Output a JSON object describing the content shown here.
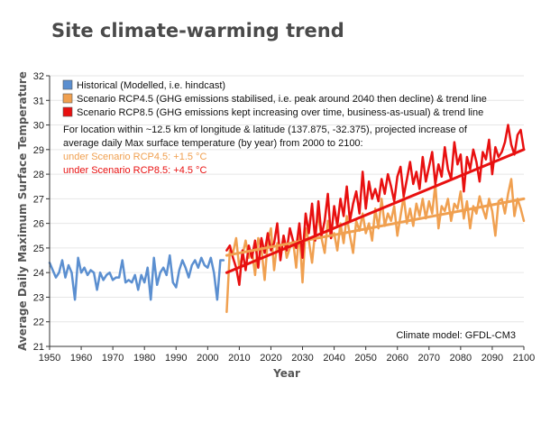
{
  "page_title": "Site climate-warming trend",
  "chart_data": {
    "type": "line",
    "xlabel": "Year",
    "ylabel": "Average Daily Maximum Surface Temperature",
    "xlim": [
      1950,
      2100
    ],
    "ylim": [
      21,
      32
    ],
    "x_ticks": [
      "1950",
      "1960",
      "1970",
      "1980",
      "1990",
      "2000",
      "2010",
      "2020",
      "2030",
      "2040",
      "2050",
      "2060",
      "2070",
      "2080",
      "2090",
      "2100"
    ],
    "y_ticks": [
      "21",
      "22",
      "23",
      "24",
      "25",
      "26",
      "27",
      "28",
      "29",
      "30",
      "31",
      "32"
    ],
    "grid": "horizontal",
    "legend_position": "top-left",
    "legend": [
      {
        "label": "Historical (Modelled, i.e. hindcast)",
        "color": "#5b8fd0"
      },
      {
        "label": "Scenario RCP4.5 (GHG emissions stabilised, i.e. peak around 2040 then decline) & trend line",
        "color": "#f0a050"
      },
      {
        "label": "Scenario RCP8.5 (GHG emissions kept increasing over time, business-as-usual) & trend line",
        "color": "#e81010"
      }
    ],
    "note_lines": [
      "For location within ~12.5 km of longitude & latitude (137.875, -32.375), projected increase of",
      "average daily Max surface temperature (by year) from 2000 to 2100:"
    ],
    "scenario_notes": [
      {
        "text": "under Scenario RCP4.5: +1.5 °C",
        "color": "#f0a050"
      },
      {
        "text": "under Scenario RCP8.5: +4.5 °C",
        "color": "#e81010"
      }
    ],
    "model_label": "Climate model: GFDL-CM3",
    "series": [
      {
        "name": "Historical (Modelled, i.e. hindcast)",
        "color": "#5b8fd0",
        "x": [
          1950,
          1951,
          1952,
          1953,
          1954,
          1955,
          1956,
          1957,
          1958,
          1959,
          1960,
          1961,
          1962,
          1963,
          1964,
          1965,
          1966,
          1967,
          1968,
          1969,
          1970,
          1971,
          1972,
          1973,
          1974,
          1975,
          1976,
          1977,
          1978,
          1979,
          1980,
          1981,
          1982,
          1983,
          1984,
          1985,
          1986,
          1987,
          1988,
          1989,
          1990,
          1991,
          1992,
          1993,
          1994,
          1995,
          1996,
          1997,
          1998,
          1999,
          2000,
          2001,
          2002,
          2003,
          2004,
          2005
        ],
        "values": [
          24.4,
          24.1,
          23.8,
          24.0,
          24.5,
          23.8,
          24.3,
          24.0,
          22.9,
          24.6,
          24.0,
          24.2,
          23.9,
          24.1,
          24.0,
          23.3,
          24.0,
          23.7,
          23.9,
          24.0,
          23.7,
          23.8,
          23.8,
          24.5,
          23.6,
          23.7,
          23.6,
          23.9,
          23.3,
          23.9,
          23.6,
          24.2,
          22.9,
          24.6,
          23.5,
          24.0,
          24.2,
          23.9,
          24.7,
          23.6,
          23.4,
          24.1,
          24.5,
          24.2,
          23.8,
          24.3,
          24.5,
          24.2,
          24.6,
          24.3,
          24.2,
          24.6,
          24.0,
          22.9,
          24.5,
          24.5
        ]
      },
      {
        "name": "Scenario RCP4.5",
        "color": "#f0a050",
        "x": [
          2006,
          2007,
          2008,
          2009,
          2010,
          2011,
          2012,
          2013,
          2014,
          2015,
          2016,
          2017,
          2018,
          2019,
          2020,
          2021,
          2022,
          2023,
          2024,
          2025,
          2026,
          2027,
          2028,
          2029,
          2030,
          2031,
          2032,
          2033,
          2034,
          2035,
          2036,
          2037,
          2038,
          2039,
          2040,
          2041,
          2042,
          2043,
          2044,
          2045,
          2046,
          2047,
          2048,
          2049,
          2050,
          2051,
          2052,
          2053,
          2054,
          2055,
          2056,
          2057,
          2058,
          2059,
          2060,
          2061,
          2062,
          2063,
          2064,
          2065,
          2066,
          2067,
          2068,
          2069,
          2070,
          2071,
          2072,
          2073,
          2074,
          2075,
          2076,
          2077,
          2078,
          2079,
          2080,
          2081,
          2082,
          2083,
          2084,
          2085,
          2086,
          2087,
          2088,
          2089,
          2090,
          2091,
          2092,
          2093,
          2094,
          2095,
          2096,
          2097,
          2098,
          2099,
          2100
        ],
        "values": [
          22.4,
          24.9,
          24.8,
          25.4,
          24.2,
          24.7,
          25.3,
          24.6,
          24.9,
          23.9,
          25.4,
          25.0,
          23.7,
          25.3,
          25.8,
          24.1,
          25.2,
          24.7,
          25.5,
          24.6,
          25.0,
          25.3,
          24.2,
          25.7,
          23.6,
          25.8,
          25.3,
          24.4,
          25.7,
          26.3,
          25.4,
          24.8,
          26.1,
          25.4,
          25.6,
          24.9,
          26.0,
          25.2,
          26.3,
          25.5,
          24.8,
          26.1,
          25.7,
          26.4,
          25.6,
          26.0,
          25.3,
          26.6,
          25.8,
          27.0,
          25.9,
          26.4,
          26.1,
          26.7,
          25.5,
          26.3,
          27.1,
          26.0,
          26.6,
          25.9,
          26.8,
          26.3,
          27.0,
          26.2,
          26.9,
          26.4,
          27.6,
          25.8,
          26.7,
          26.5,
          27.0,
          26.1,
          26.8,
          26.6,
          27.3,
          26.2,
          26.9,
          25.8,
          26.7,
          26.4,
          27.1,
          26.6,
          26.2,
          27.0,
          26.5,
          25.5,
          26.9,
          27.0,
          26.4,
          27.2,
          27.8,
          26.3,
          27.0,
          26.6,
          26.1
        ]
      },
      {
        "name": "Scenario RCP8.5",
        "color": "#e81010",
        "x": [
          2006,
          2007,
          2008,
          2009,
          2010,
          2011,
          2012,
          2013,
          2014,
          2015,
          2016,
          2017,
          2018,
          2019,
          2020,
          2021,
          2022,
          2023,
          2024,
          2025,
          2026,
          2027,
          2028,
          2029,
          2030,
          2031,
          2032,
          2033,
          2034,
          2035,
          2036,
          2037,
          2038,
          2039,
          2040,
          2041,
          2042,
          2043,
          2044,
          2045,
          2046,
          2047,
          2048,
          2049,
          2050,
          2051,
          2052,
          2053,
          2054,
          2055,
          2056,
          2057,
          2058,
          2059,
          2060,
          2061,
          2062,
          2063,
          2064,
          2065,
          2066,
          2067,
          2068,
          2069,
          2070,
          2071,
          2072,
          2073,
          2074,
          2075,
          2076,
          2077,
          2078,
          2079,
          2080,
          2081,
          2082,
          2083,
          2084,
          2085,
          2086,
          2087,
          2088,
          2089,
          2090,
          2091,
          2092,
          2093,
          2094,
          2095,
          2096,
          2097,
          2098,
          2099,
          2100
        ],
        "values": [
          24.9,
          25.1,
          24.6,
          24.2,
          23.5,
          24.9,
          24.1,
          25.1,
          24.6,
          25.3,
          24.2,
          25.4,
          24.8,
          25.6,
          24.9,
          25.2,
          26.0,
          24.5,
          25.5,
          24.9,
          25.8,
          25.3,
          25.0,
          26.0,
          24.6,
          26.4,
          25.6,
          26.8,
          25.3,
          26.9,
          25.5,
          26.1,
          27.2,
          25.4,
          26.7,
          25.9,
          27.0,
          26.3,
          27.5,
          26.1,
          26.8,
          27.3,
          26.4,
          28.1,
          26.6,
          27.7,
          27.0,
          27.4,
          26.9,
          27.8,
          27.2,
          28.0,
          27.5,
          26.9,
          27.9,
          28.3,
          27.1,
          27.8,
          28.5,
          27.6,
          28.1,
          27.4,
          28.7,
          27.7,
          28.3,
          28.9,
          27.6,
          28.4,
          27.9,
          29.1,
          28.2,
          27.8,
          29.3,
          28.4,
          28.8,
          27.3,
          28.7,
          28.2,
          29.0,
          28.5,
          27.7,
          28.9,
          28.6,
          29.4,
          28.0,
          29.1,
          28.7,
          28.9,
          29.3,
          30.0,
          29.2,
          28.8,
          29.6,
          29.8,
          29.0
        ]
      },
      {
        "name": "RCP4.5 trend line",
        "color": "#f0a050",
        "trend": true,
        "x": [
          2006,
          2100
        ],
        "values": [
          24.7,
          27.0
        ]
      },
      {
        "name": "RCP8.5 trend line",
        "color": "#e81010",
        "trend": true,
        "x": [
          2006,
          2100
        ],
        "values": [
          24.0,
          29.0
        ]
      }
    ]
  }
}
